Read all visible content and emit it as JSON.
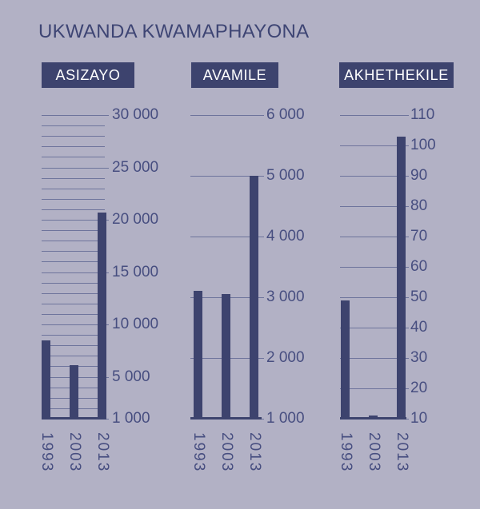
{
  "title": "UKWANDA KWAMAPHAYONA",
  "colors": {
    "background": "#b2b1c5",
    "bar": "#3d436e",
    "header_background": "#3d436e",
    "header_text": "#ffffff",
    "title_text": "#3e4574",
    "tick_text": "#474e80",
    "gridline": "#6e749c"
  },
  "chart_data": [
    {
      "type": "bar",
      "title": "ASIZAYO",
      "categories": [
        "1993",
        "2003",
        "2013"
      ],
      "values": [
        8500,
        6100,
        20700
      ],
      "ylim": [
        1000,
        30000
      ],
      "grid_step": 1000,
      "grid": "on",
      "labeled_ticks": [
        1000,
        5000,
        10000,
        15000,
        20000,
        25000,
        30000
      ],
      "tick_labels": [
        "1 000",
        "5 000",
        "10 000",
        "15 000",
        "20 000",
        "25 000",
        "30 000"
      ],
      "xlabel": "",
      "ylabel": ""
    },
    {
      "type": "bar",
      "title": "AVAMILE",
      "categories": [
        "1993",
        "2003",
        "2013"
      ],
      "values": [
        3100,
        3050,
        5000
      ],
      "ylim": [
        1000,
        6000
      ],
      "grid_step": 1000,
      "grid": "on",
      "labeled_ticks": [
        1000,
        2000,
        3000,
        4000,
        5000,
        6000
      ],
      "tick_labels": [
        "1 000",
        "2 000",
        "3 000",
        "4 000",
        "5 000",
        "6 000"
      ],
      "xlabel": "",
      "ylabel": ""
    },
    {
      "type": "bar",
      "title": "AKHETHEKILE",
      "categories": [
        "1993",
        "2003",
        "2013"
      ],
      "values": [
        49,
        11,
        103
      ],
      "ylim": [
        10,
        110
      ],
      "grid_step": 10,
      "grid": "on",
      "labeled_ticks": [
        10,
        20,
        30,
        40,
        50,
        60,
        70,
        80,
        90,
        100,
        110
      ],
      "tick_labels": [
        "10",
        "20",
        "30",
        "40",
        "50",
        "60",
        "70",
        "80",
        "90",
        "100",
        "110"
      ],
      "xlabel": "",
      "ylabel": ""
    }
  ]
}
